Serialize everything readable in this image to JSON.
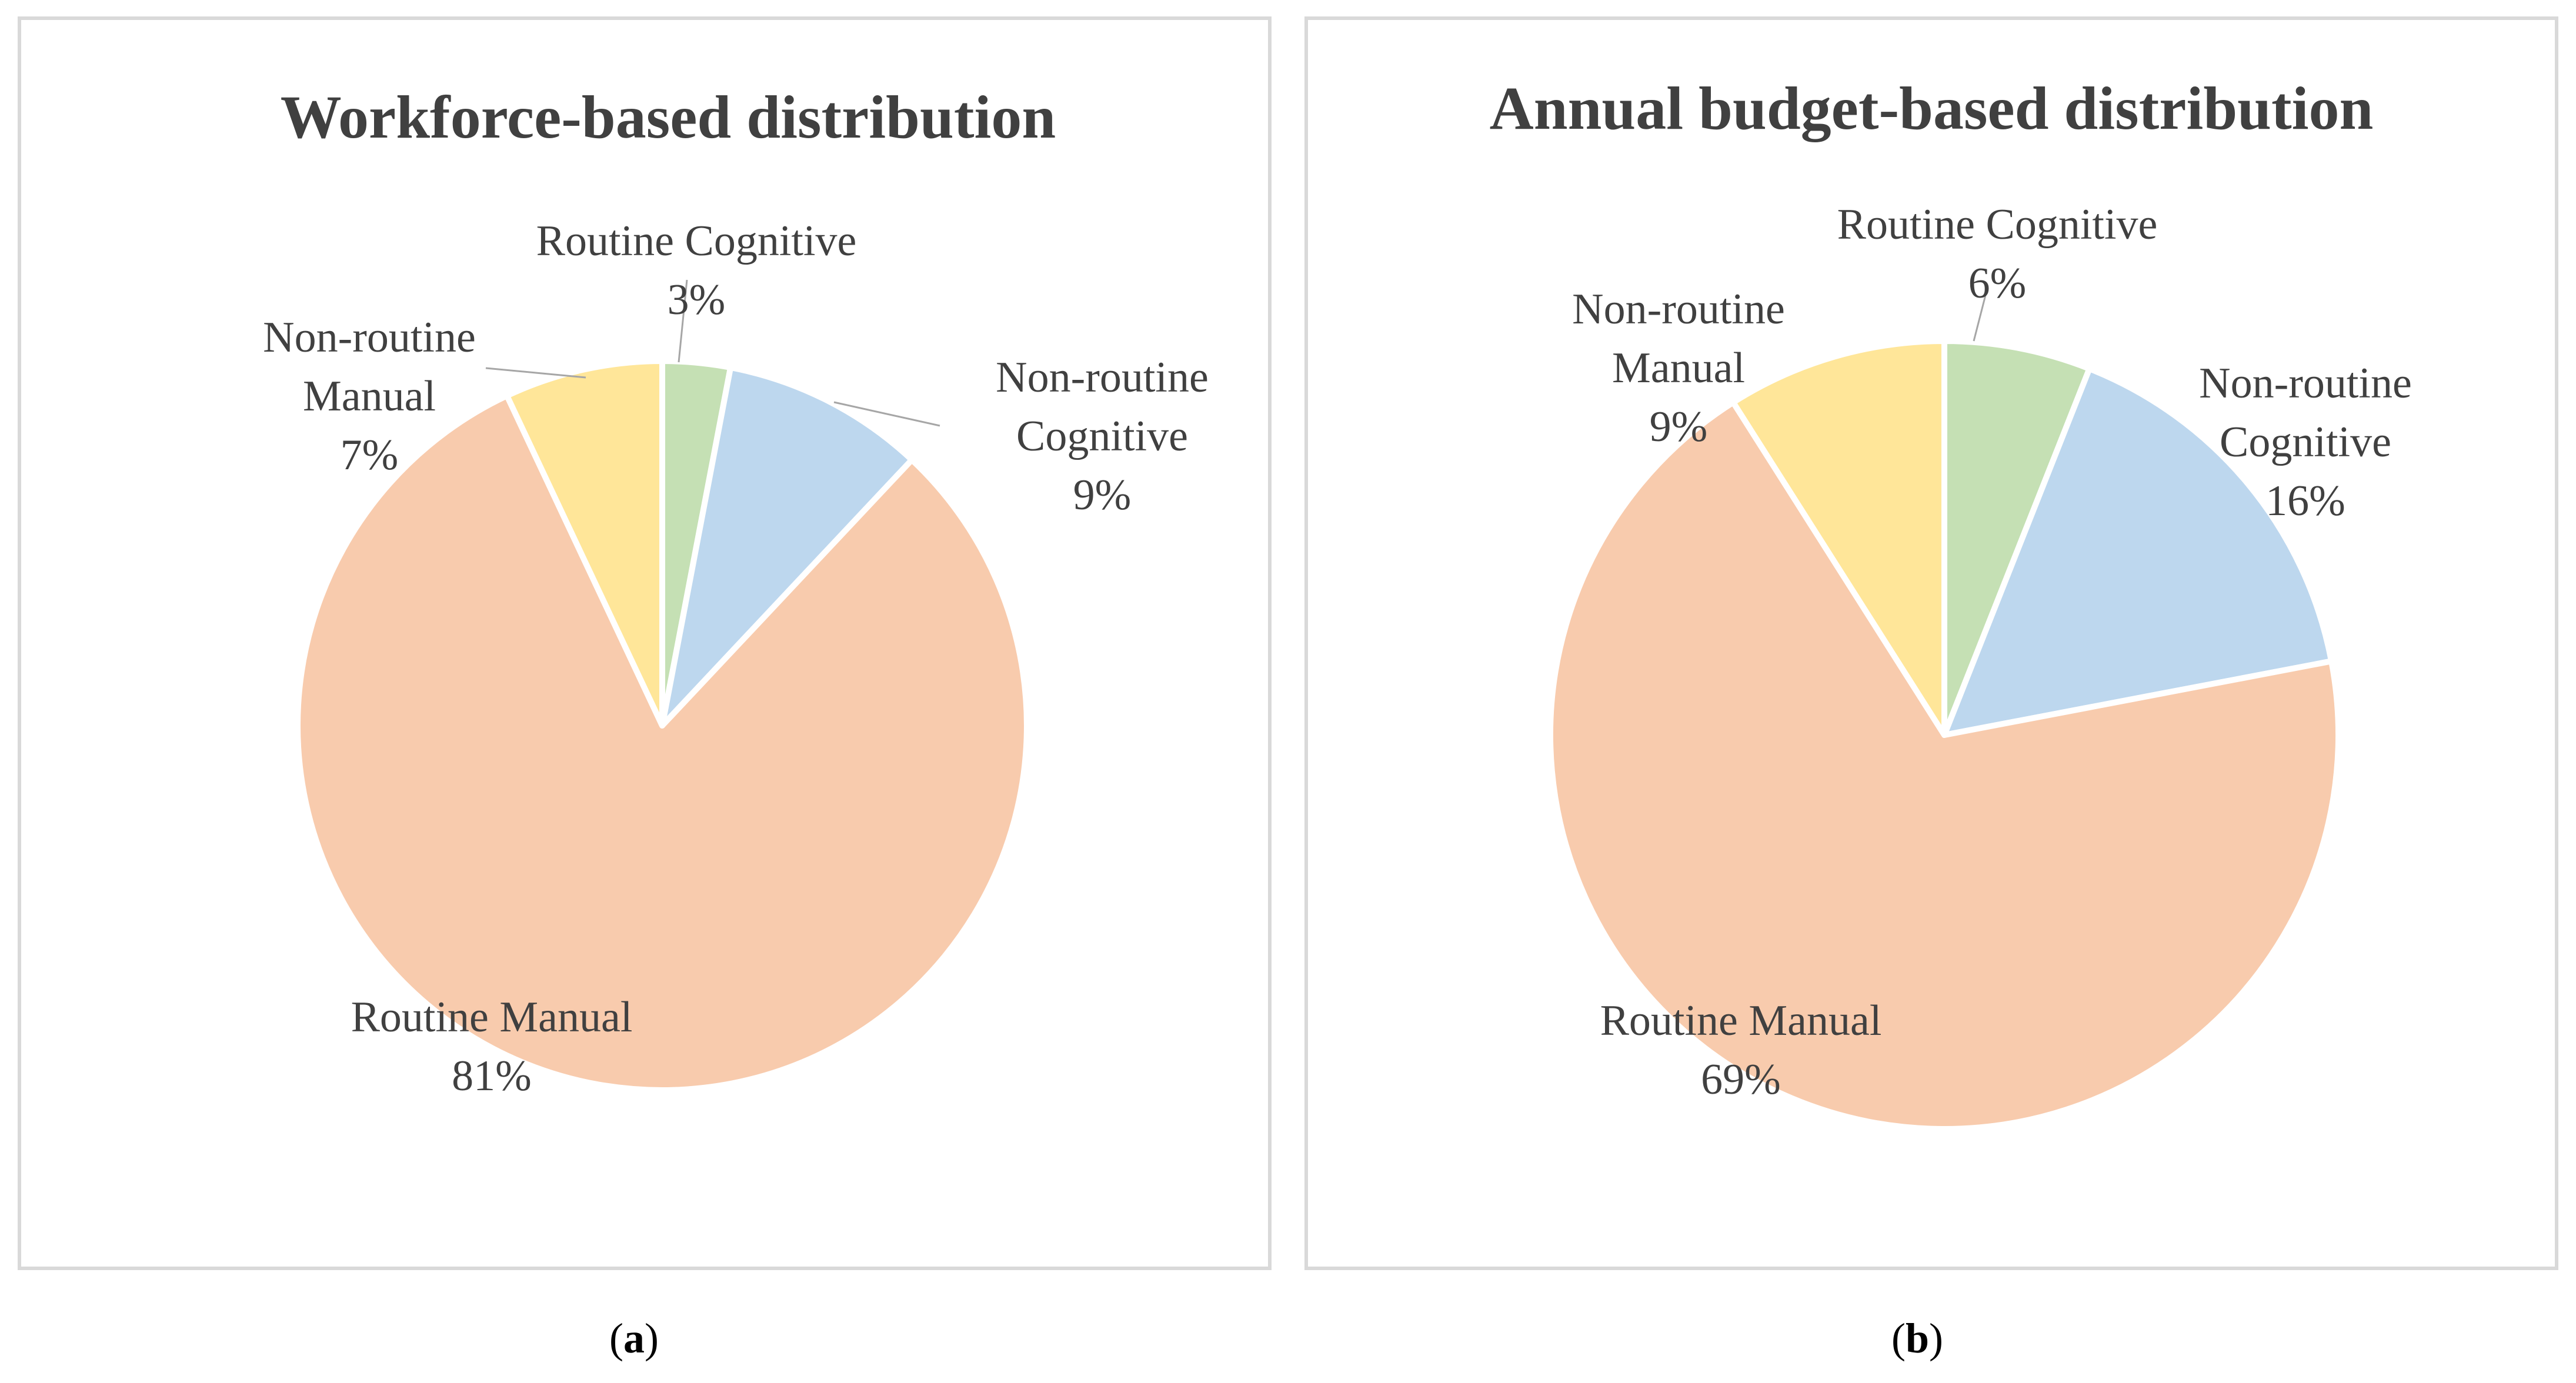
{
  "chart_data": [
    {
      "type": "pie",
      "title": "Workforce-based distribution",
      "caption": "a",
      "categories": [
        "Routine Cognitive",
        "Non-routine Cognitive",
        "Routine Manual",
        "Non-routine Manual"
      ],
      "values": [
        3,
        9,
        81,
        7
      ],
      "labels": [
        {
          "name_lines": [
            "Routine Cognitive"
          ],
          "pct": "3%"
        },
        {
          "name_lines": [
            "Non-routine",
            "Cognitive"
          ],
          "pct": "9%"
        },
        {
          "name_lines": [
            "Routine Manual"
          ],
          "pct": "81%"
        },
        {
          "name_lines": [
            "Non-routine",
            "Manual"
          ],
          "pct": "7%"
        }
      ],
      "colors": [
        "#c5e0b4",
        "#bdd7ee",
        "#f8cbad",
        "#ffe699"
      ],
      "start_angle_deg": 0,
      "direction": "clockwise"
    },
    {
      "type": "pie",
      "title": "Annual budget-based distribution",
      "caption": "b",
      "categories": [
        "Routine Cognitive",
        "Non-routine Cognitive",
        "Routine Manual",
        "Non-routine Manual"
      ],
      "values": [
        6,
        16,
        69,
        9
      ],
      "labels": [
        {
          "name_lines": [
            "Routine Cognitive"
          ],
          "pct": "6%"
        },
        {
          "name_lines": [
            "Non-routine",
            "Cognitive"
          ],
          "pct": "16%"
        },
        {
          "name_lines": [
            "Routine Manual"
          ],
          "pct": "69%"
        },
        {
          "name_lines": [
            "Non-routine",
            "Manual"
          ],
          "pct": "9%"
        }
      ],
      "colors": [
        "#c5e0b4",
        "#bdd7ee",
        "#f8cbad",
        "#ffe699"
      ],
      "start_angle_deg": 0,
      "direction": "clockwise"
    }
  ]
}
